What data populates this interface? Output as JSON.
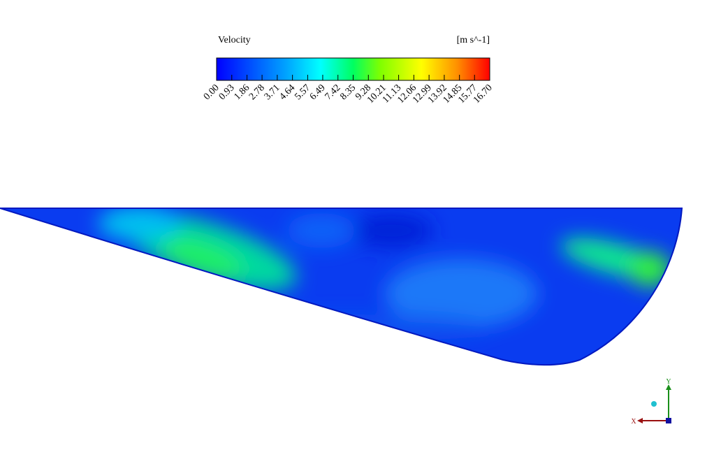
{
  "legend": {
    "title": "Velocity",
    "unit": "[m s^-1]",
    "range": [
      0,
      16.7
    ],
    "ticks": [
      {
        "value": 0,
        "label": "0.00"
      },
      {
        "value": 0.93,
        "label": "0.93"
      },
      {
        "value": 1.86,
        "label": "1.86"
      },
      {
        "value": 2.78,
        "label": "2.78"
      },
      {
        "value": 3.71,
        "label": "3.71"
      },
      {
        "value": 4.64,
        "label": "4.64"
      },
      {
        "value": 5.57,
        "label": "5.57"
      },
      {
        "value": 6.49,
        "label": "6.49"
      },
      {
        "value": 7.42,
        "label": "7.42"
      },
      {
        "value": 8.35,
        "label": "8.35"
      },
      {
        "value": 9.28,
        "label": "9.28"
      },
      {
        "value": 10.21,
        "label": "10.21"
      },
      {
        "value": 11.13,
        "label": "11.13"
      },
      {
        "value": 12.06,
        "label": "12.06"
      },
      {
        "value": 12.99,
        "label": "12.99"
      },
      {
        "value": 13.92,
        "label": "13.92"
      },
      {
        "value": 14.85,
        "label": "14.85"
      },
      {
        "value": 15.77,
        "label": "15.77"
      },
      {
        "value": 16.7,
        "label": "16.70"
      }
    ]
  },
  "axes": {
    "y": "Y",
    "x": "X"
  }
}
